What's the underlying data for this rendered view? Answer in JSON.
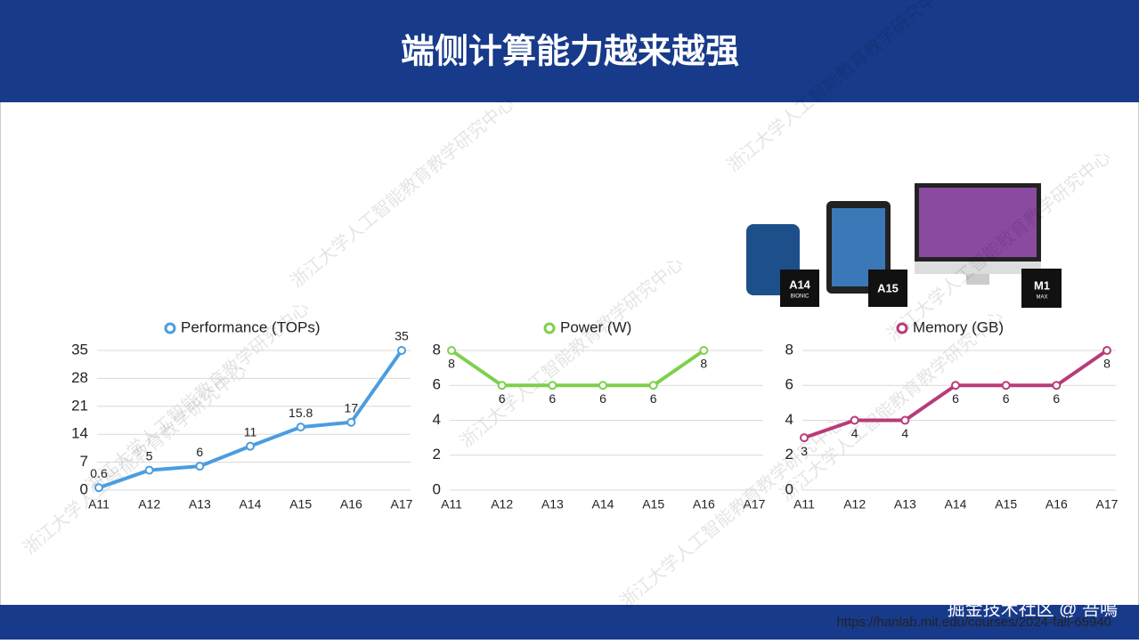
{
  "header": {
    "title": "端侧计算能力越来越强"
  },
  "watermark": "浙江大学人工智能教育教学研究中心",
  "device_labels": [
    "A14",
    "BIONIC",
    "A15",
    "M1",
    "MAX"
  ],
  "footer": {
    "url": "https://hanlab.mit.edu/courses/2024-fall-65940",
    "credit": "掘金技术社区 @ 吾鳴"
  },
  "chart_data": [
    {
      "type": "line",
      "categories": [
        "A11",
        "A12",
        "A13",
        "A14",
        "A15",
        "A16",
        "A17"
      ],
      "series": [
        {
          "name": "Performance (TOPs)",
          "color": "#4a9de0",
          "values": [
            0.6,
            5,
            6,
            11,
            15.8,
            17,
            35
          ]
        }
      ],
      "ylim": [
        0,
        35
      ],
      "yticks": [
        0,
        7,
        14,
        21,
        28,
        35
      ],
      "grid": true,
      "legend": "top",
      "label_position": "above"
    },
    {
      "type": "line",
      "categories": [
        "A11",
        "A12",
        "A13",
        "A14",
        "A15",
        "A16",
        "A17"
      ],
      "series": [
        {
          "name": "Power (W)",
          "color": "#7ed04b",
          "values": [
            8,
            6,
            6,
            6,
            6,
            8,
            null
          ]
        }
      ],
      "ylim": [
        0,
        8
      ],
      "yticks": [
        0,
        2,
        4,
        6,
        8
      ],
      "grid": true,
      "legend": "top",
      "label_position": "below"
    },
    {
      "type": "line",
      "categories": [
        "A11",
        "A12",
        "A13",
        "A14",
        "A15",
        "A16",
        "A17"
      ],
      "series": [
        {
          "name": "Memory (GB)",
          "color": "#b83b78",
          "values": [
            3,
            4,
            4,
            6,
            6,
            6,
            8
          ]
        }
      ],
      "ylim": [
        0,
        8
      ],
      "yticks": [
        0,
        2,
        4,
        6,
        8
      ],
      "grid": true,
      "legend": "top",
      "label_position": "below"
    }
  ]
}
